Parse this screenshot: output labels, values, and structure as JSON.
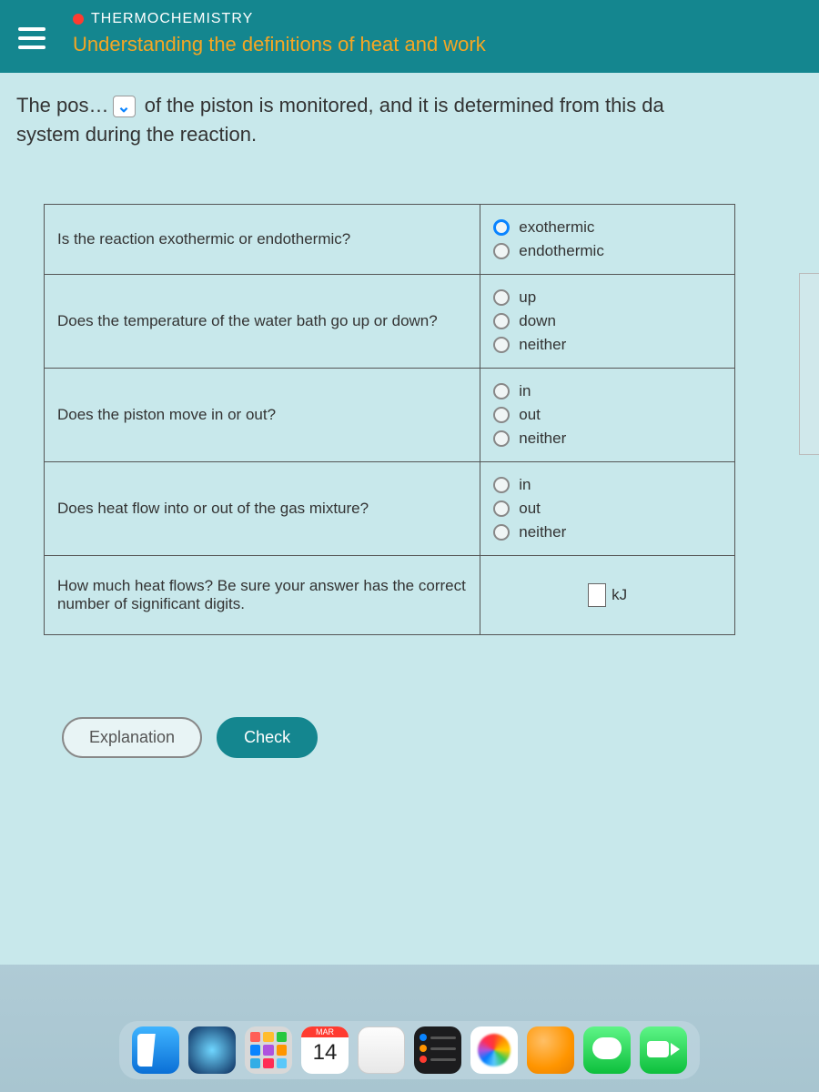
{
  "header": {
    "topic": "THERMOCHEMISTRY",
    "subtitle": "Understanding the definitions of heat and work"
  },
  "prompt": {
    "before_dropdown": "The pos",
    "ellipsis": "…",
    "after_dropdown": " of the piston is monitored, and it is determined from this da",
    "line2": "system during the reaction."
  },
  "questions": [
    {
      "text": "Is the reaction exothermic or endothermic?",
      "options": [
        {
          "label": "exothermic",
          "selected": true
        },
        {
          "label": "endothermic",
          "selected": false
        }
      ]
    },
    {
      "text": "Does the temperature of the water bath go up or down?",
      "options": [
        {
          "label": "up",
          "selected": false
        },
        {
          "label": "down",
          "selected": false
        },
        {
          "label": "neither",
          "selected": false
        }
      ]
    },
    {
      "text": "Does the piston move in or out?",
      "options": [
        {
          "label": "in",
          "selected": false
        },
        {
          "label": "out",
          "selected": false
        },
        {
          "label": "neither",
          "selected": false
        }
      ]
    },
    {
      "text": "Does heat flow into or out of the gas mixture?",
      "options": [
        {
          "label": "in",
          "selected": false
        },
        {
          "label": "out",
          "selected": false
        },
        {
          "label": "neither",
          "selected": false
        }
      ]
    }
  ],
  "heat_question": {
    "text": "How much heat flows? Be sure your answer has the correct number of significant digits.",
    "unit": "kJ"
  },
  "buttons": {
    "explanation": "Explanation",
    "check": "Check"
  },
  "dock": {
    "calendar_month": "MAR",
    "calendar_day": "14"
  }
}
